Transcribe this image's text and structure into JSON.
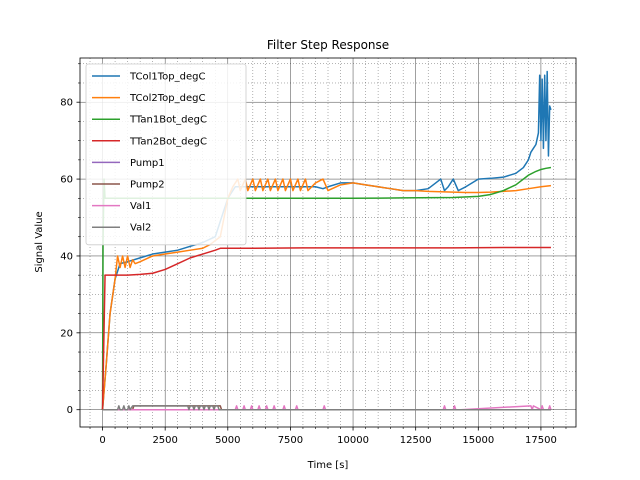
{
  "chart_data": {
    "type": "line",
    "title": "Filter Step Response",
    "xlabel": "Time [s]",
    "ylabel": "Signal Value",
    "xlim": [
      -900,
      18900
    ],
    "ylim": [
      -4.5,
      91.5
    ],
    "xticks": [
      0,
      2500,
      5000,
      7500,
      10000,
      12500,
      15000,
      17500
    ],
    "xtick_labels": [
      "0",
      "2500",
      "5000",
      "7500",
      "10000",
      "12500",
      "15000",
      "17500"
    ],
    "yticks": [
      0,
      20,
      40,
      60,
      80
    ],
    "ytick_labels": [
      "0",
      "20",
      "40",
      "60",
      "80"
    ],
    "grid": true,
    "minor_grid": true,
    "legend_position": "upper-left",
    "series": [
      {
        "name": "TCol1Top_degC",
        "color": "#1f77b4",
        "x": [
          0,
          150,
          300,
          500,
          700,
          1000,
          1500,
          2000,
          2500,
          3000,
          3500,
          4000,
          4500,
          4700,
          5000,
          5300,
          5600,
          6000,
          6500,
          7000,
          7500,
          8000,
          8500,
          8800,
          9000,
          9500,
          10000,
          10500,
          11000,
          11500,
          12000,
          12500,
          13000,
          13300,
          13500,
          13650,
          13800,
          14000,
          14200,
          14500,
          15000,
          15500,
          16000,
          16500,
          16800,
          17000,
          17100,
          17200,
          17300,
          17400,
          17450,
          17500,
          17550,
          17600,
          17650,
          17700,
          17750,
          17800,
          17850,
          17900
        ],
        "y": [
          0,
          12,
          25,
          34,
          38,
          38.5,
          39.5,
          40.5,
          41,
          41.5,
          42.5,
          43.5,
          45,
          49,
          55,
          58,
          58,
          58,
          58,
          58,
          58,
          58,
          58,
          57.5,
          58,
          59,
          59,
          58.5,
          58,
          57.5,
          57,
          57,
          57.5,
          59,
          60,
          57,
          58,
          60,
          57,
          58,
          60,
          60.2,
          60.5,
          61.5,
          63,
          65,
          67,
          68,
          69,
          72,
          87,
          70,
          86,
          68,
          87,
          70,
          88,
          66,
          79,
          78
        ]
      },
      {
        "name": "TCol2Top_degC",
        "color": "#ff7f0e",
        "x": [
          0,
          150,
          300,
          500,
          600,
          700,
          800,
          900,
          1000,
          1100,
          1200,
          1300,
          1500,
          2000,
          2500,
          3000,
          3500,
          4000,
          4300,
          4500,
          4700,
          5000,
          5200,
          5400,
          5500,
          5700,
          5800,
          6000,
          6100,
          6300,
          6400,
          6600,
          6700,
          6900,
          7000,
          7200,
          7300,
          7500,
          7600,
          7800,
          7900,
          8100,
          8200,
          8500,
          8800,
          9000,
          9500,
          10000,
          10500,
          11000,
          11500,
          12000,
          12500,
          13000,
          13500,
          14000,
          14500,
          15000,
          15500,
          16000,
          16500,
          17000,
          17500,
          17900
        ],
        "y": [
          0,
          12,
          25,
          34,
          40,
          37,
          40,
          37,
          40,
          37,
          39,
          38,
          38.5,
          40,
          40.5,
          41,
          41.5,
          42,
          43,
          44,
          45,
          55,
          58,
          60,
          57,
          60,
          57,
          60,
          57,
          60,
          57,
          60,
          57,
          60,
          57,
          60,
          57,
          60,
          57,
          60,
          57,
          60,
          57,
          59,
          60,
          57,
          58.5,
          59,
          58.5,
          58,
          57.5,
          57,
          57,
          56.8,
          56.7,
          56.6,
          56.5,
          56.5,
          56.6,
          56.8,
          57,
          57.5,
          58,
          58.3
        ]
      },
      {
        "name": "TTan1Bot_degC",
        "color": "#2ca02c",
        "x": [
          0,
          20,
          60,
          100,
          200,
          400,
          800,
          1500,
          2500,
          3500,
          4500,
          5000,
          6000,
          8000,
          10000,
          12000,
          14000,
          15000,
          15500,
          16000,
          16500,
          17000,
          17300,
          17500,
          17700,
          17900
        ],
        "y": [
          0,
          44,
          60,
          55,
          55,
          55,
          55,
          55,
          55,
          55,
          55,
          55,
          55,
          55,
          55,
          55.1,
          55.2,
          55.5,
          56,
          57,
          58.5,
          61,
          62,
          62.5,
          62.8,
          63
        ]
      },
      {
        "name": "TTan2Bot_degC",
        "color": "#d62728",
        "x": [
          0,
          100,
          300,
          600,
          1000,
          1500,
          2000,
          2500,
          3000,
          3500,
          4000,
          4500,
          4700,
          6000,
          8000,
          10000,
          12000,
          14000,
          16000,
          17900
        ],
        "y": [
          0,
          35,
          35,
          35,
          35,
          35.2,
          35.5,
          36.5,
          38,
          39.5,
          40.5,
          41.5,
          42,
          42,
          42.1,
          42.1,
          42.1,
          42.1,
          42.2,
          42.2
        ]
      },
      {
        "name": "Pump1",
        "color": "#9467bd",
        "x": [
          0,
          17900
        ],
        "y": [
          0,
          0
        ]
      },
      {
        "name": "Pump2",
        "color": "#8c564b",
        "x": [
          0,
          1200,
          1250,
          4700,
          4750,
          17900
        ],
        "y": [
          0,
          0,
          1,
          1,
          0,
          0
        ]
      },
      {
        "name": "Val1",
        "color": "#e377c2",
        "x": [
          0,
          5300,
          5350,
          5400,
          5600,
          5650,
          5700,
          5900,
          5950,
          6000,
          6200,
          6250,
          6300,
          6500,
          6550,
          6600,
          6800,
          6850,
          6900,
          7200,
          7250,
          7300,
          7700,
          7750,
          7800,
          8800,
          8850,
          8900,
          13600,
          13650,
          13700,
          14000,
          14050,
          14100,
          14300,
          17100,
          17150,
          17200,
          17500,
          17550,
          17600,
          17800,
          17850,
          17900
        ],
        "y": [
          0,
          0,
          1,
          0,
          0,
          1,
          0,
          0,
          1,
          0,
          0,
          1,
          0,
          0,
          1,
          0,
          0,
          1,
          0,
          0,
          1,
          0,
          0,
          1,
          0,
          0,
          1,
          0,
          0,
          1,
          0,
          0,
          1,
          0,
          0,
          1,
          0,
          1,
          0,
          1,
          0,
          0,
          1,
          0
        ]
      },
      {
        "name": "Val2",
        "color": "#7f7f7f",
        "x": [
          0,
          600,
          650,
          700,
          800,
          850,
          900,
          1000,
          1050,
          1100,
          1200,
          3400,
          3450,
          3500,
          3600,
          3650,
          3700,
          3800,
          3850,
          3900,
          4000,
          4050,
          4100,
          4200,
          4250,
          4300,
          4400,
          4450,
          4500,
          4600,
          4650,
          4700,
          17900
        ],
        "y": [
          0,
          0,
          1,
          0,
          0,
          1,
          0,
          0,
          1,
          0,
          1,
          1,
          0,
          1,
          1,
          0,
          1,
          1,
          0,
          1,
          1,
          0,
          1,
          1,
          0,
          1,
          1,
          0,
          1,
          1,
          0,
          0,
          0
        ]
      }
    ]
  }
}
